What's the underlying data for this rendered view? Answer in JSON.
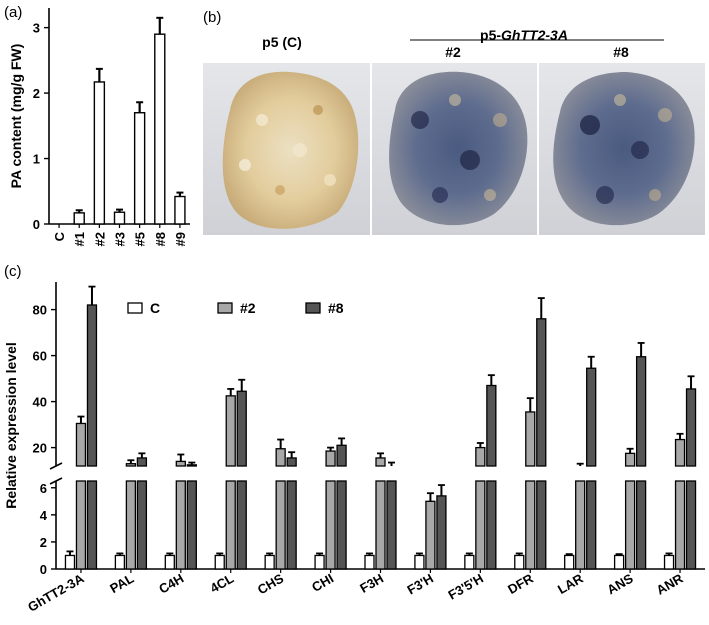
{
  "panel_labels": {
    "a": "(a)",
    "b": "(b)",
    "c": "(c)"
  },
  "photos": {
    "left_caption": "p5 (C)",
    "group_caption_prefix": "p5-",
    "group_caption_gene": "GhTT2-3A",
    "sub_captions": [
      "#2",
      "#8"
    ],
    "colors": {
      "control": "#e3cfa6",
      "transgenic": "#5a6e96"
    }
  },
  "chart_data": [
    {
      "type": "bar",
      "panel": "(a)",
      "ylabel": "PA content (mg/g FW)",
      "xlabel": "",
      "ylim": [
        0,
        3.3
      ],
      "yticks": [
        0,
        1,
        2,
        3
      ],
      "categories": [
        "C",
        "#1",
        "#2",
        "#3",
        "#5",
        "#8",
        "#9"
      ],
      "values": [
        0.0,
        0.17,
        2.17,
        0.18,
        1.7,
        2.9,
        0.42
      ],
      "errors": [
        0.0,
        0.04,
        0.2,
        0.04,
        0.16,
        0.25,
        0.06
      ],
      "bar_color": "#ffffff"
    },
    {
      "type": "bar",
      "panel": "(c)",
      "ylabel": "Relative expression level",
      "xlabel": "",
      "broken_axis": true,
      "lower_ylim": [
        0,
        6.5
      ],
      "lower_yticks": [
        0,
        2,
        4,
        6
      ],
      "upper_ylim": [
        12,
        92
      ],
      "upper_yticks": [
        20,
        40,
        60,
        80
      ],
      "categories": [
        "GhTT2-3A",
        "PAL",
        "C4H",
        "4CL",
        "CHS",
        "CHI",
        "F3H",
        "F3'H",
        "F3'5'H",
        "DFR",
        "LAR",
        "ANS",
        "ANR"
      ],
      "series": [
        {
          "name": "C",
          "color": "#ffffff",
          "values": [
            1,
            1,
            1,
            1,
            1,
            1,
            1,
            1,
            1,
            1,
            1,
            1,
            1
          ],
          "errors": [
            0.3,
            0.15,
            0.15,
            0.15,
            0.15,
            0.15,
            0.15,
            0.15,
            0.15,
            0.15,
            0.1,
            0.1,
            0.15
          ]
        },
        {
          "name": "#2",
          "color": "#a8a8a8",
          "values": [
            30.5,
            13,
            14,
            42.5,
            19.5,
            18.5,
            15.5,
            5,
            20,
            35.5,
            11.5,
            17.5,
            23.5
          ],
          "errors": [
            3,
            1.5,
            3,
            3,
            4,
            1.5,
            2,
            0.6,
            2,
            6,
            1.5,
            2,
            2.5
          ]
        },
        {
          "name": "#8",
          "color": "#555555",
          "values": [
            82,
            15.5,
            12.5,
            44.5,
            15.5,
            21,
            11.5,
            5.4,
            47,
            76,
            54.5,
            59.5,
            45.5
          ],
          "errors": [
            8,
            2,
            1,
            5,
            2.5,
            3,
            2,
            0.8,
            4.5,
            9,
            5,
            6,
            5.5
          ]
        }
      ]
    }
  ]
}
